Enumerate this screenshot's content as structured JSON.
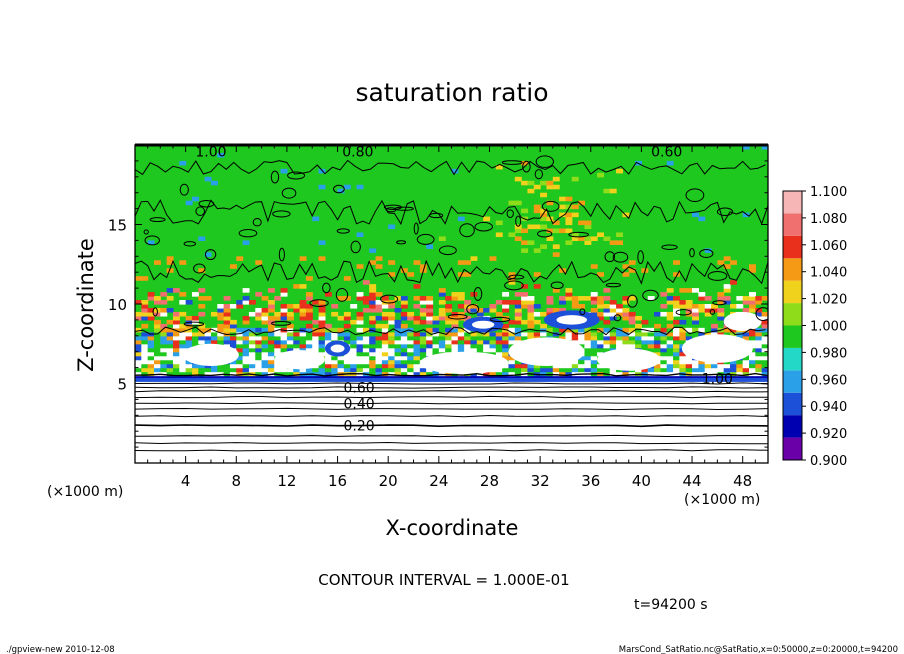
{
  "chart_data": {
    "type": "heatmap",
    "title": "saturation ratio",
    "xlabel": "X-coordinate",
    "ylabel": "Z-coordinate",
    "x_unit_left": "(×1000 m)",
    "x_unit_right": "(×1000 m)",
    "xlim": [
      0,
      50
    ],
    "ylim": [
      0,
      20
    ],
    "x_ticks": [
      4,
      8,
      12,
      16,
      20,
      24,
      28,
      32,
      36,
      40,
      44,
      48
    ],
    "y_ticks": [
      5,
      10,
      15
    ],
    "contour_labels": [
      {
        "text": "1.00",
        "x": 6.0,
        "z": 19.6
      },
      {
        "text": "0.80",
        "x": 17.6,
        "z": 19.6
      },
      {
        "text": "0.60",
        "x": 42.0,
        "z": 19.6
      },
      {
        "text": "1.00",
        "x": 46.0,
        "z": 5.3
      },
      {
        "text": "0.60",
        "x": 17.7,
        "z": 4.75
      },
      {
        "text": "0.40",
        "x": 17.7,
        "z": 3.75
      },
      {
        "text": "0.20",
        "x": 17.7,
        "z": 2.35
      }
    ],
    "colorbar": {
      "levels": [
        "0.900",
        "0.920",
        "0.940",
        "0.960",
        "0.980",
        "1.000",
        "1.020",
        "1.040",
        "1.060",
        "1.080",
        "1.100"
      ],
      "colors": [
        "#6a00a8",
        "#0000b0",
        "#1d50d8",
        "#2aa0e8",
        "#24d8c8",
        "#1ec81e",
        "#8fdc1a",
        "#f0d21c",
        "#f59a14",
        "#e8301c",
        "#f07070",
        "#f7b6b6"
      ]
    },
    "field_colors": {
      "green": "#1ec81e",
      "white": "#ffffff"
    },
    "contour_interval": "CONTOUR INTERVAL = 1.000E-01",
    "time": "t=94200 s"
  },
  "footer": {
    "left": "./gpview-new   2010-12-08",
    "right": "MarsCond_SatRatio.nc@SatRatio,x=0:50000,z=0:20000,t=94200"
  }
}
